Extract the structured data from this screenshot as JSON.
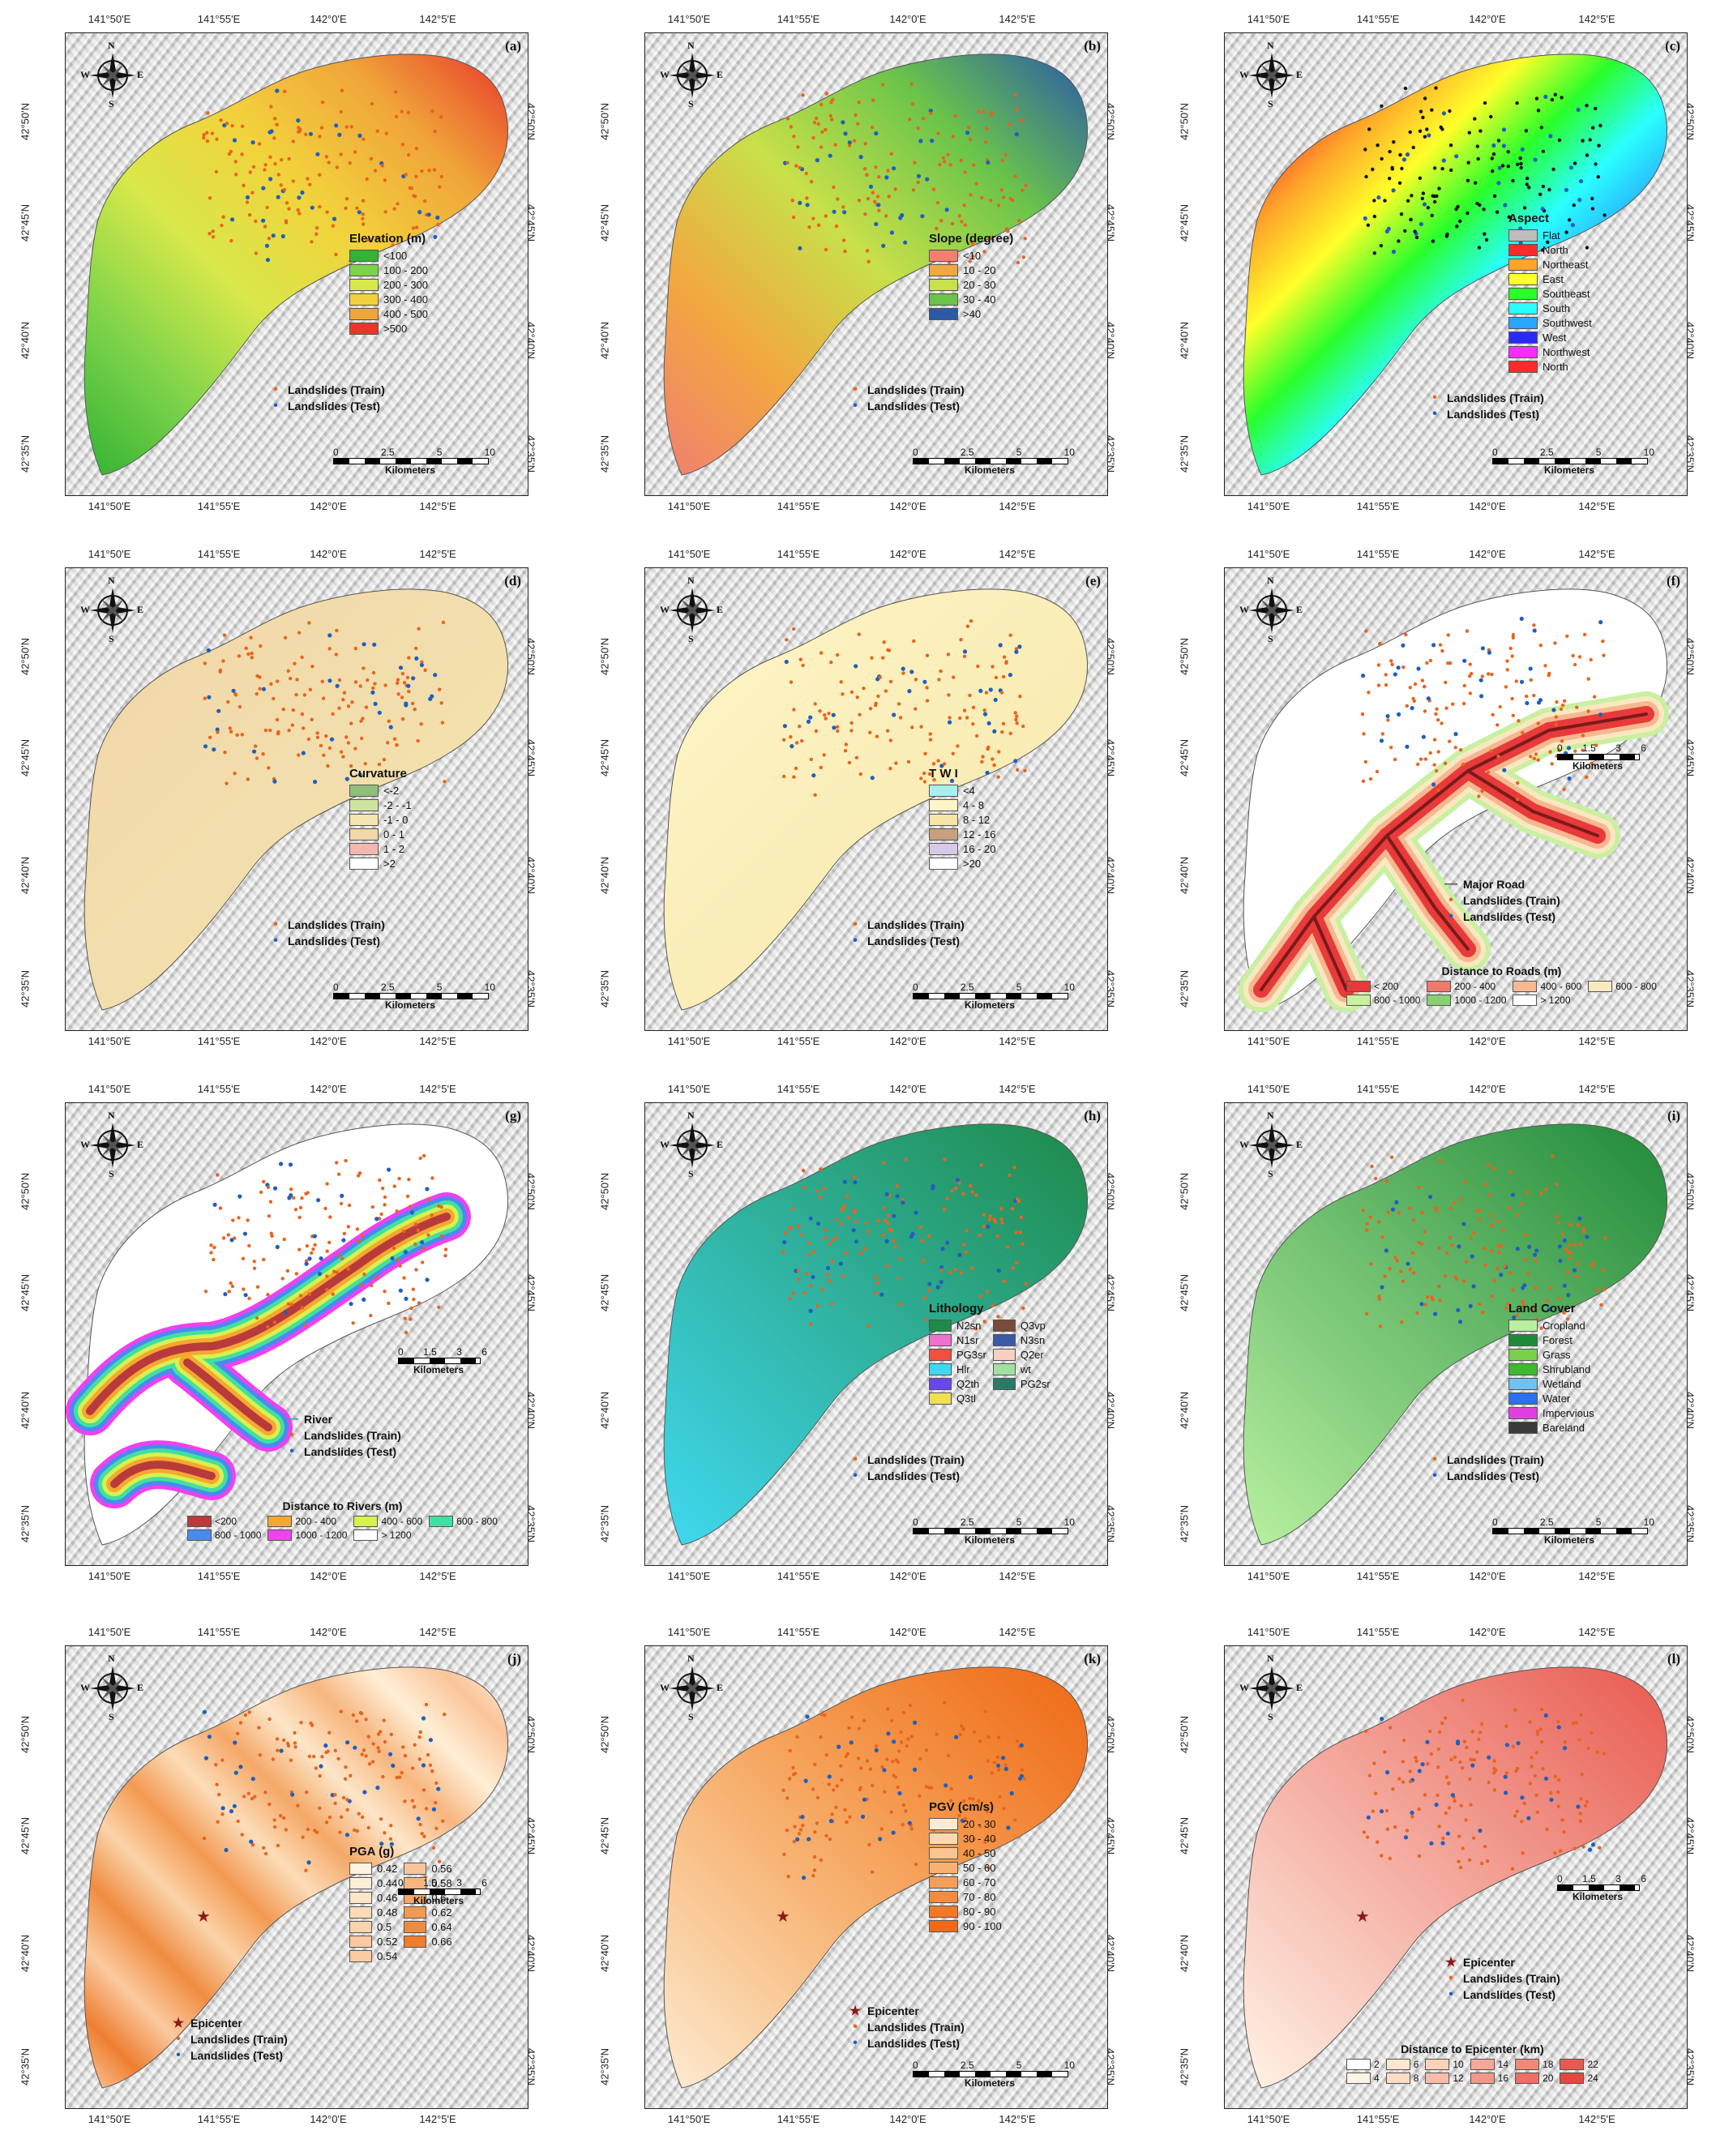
{
  "ticks": {
    "lon": [
      "141°50'E",
      "141°55'E",
      "142°0'E",
      "142°5'E"
    ],
    "lat": [
      "42°50'N",
      "42°45'N",
      "42°40'N",
      "42°35'N"
    ]
  },
  "compass": {
    "n": "N",
    "s": "S",
    "w": "W",
    "e": "E"
  },
  "panels": [
    {
      "tag": "(a)",
      "legend_title": "Elevation (m)",
      "classes": [
        {
          "label": "<100",
          "color": "#33b233"
        },
        {
          "label": "100 - 200",
          "color": "#7cd34a"
        },
        {
          "label": "200 - 300",
          "color": "#d8e84a"
        },
        {
          "label": "300 - 400",
          "color": "#f2d23c"
        },
        {
          "label": "400 - 500",
          "color": "#f0a53a"
        },
        {
          "label": ">500",
          "color": "#e8372a"
        }
      ],
      "points": [
        "Landslides (Train)",
        "Landslides (Test)"
      ],
      "scale": [
        "0",
        "2.5",
        "5",
        "10"
      ],
      "scale_unit": "Kilometers"
    },
    {
      "tag": "(b)",
      "legend_title": "Slope (degree)",
      "classes": [
        {
          "label": "<10",
          "color": "#f08070"
        },
        {
          "label": "10 - 20",
          "color": "#f2a840"
        },
        {
          "label": "20 - 30",
          "color": "#c8e04a"
        },
        {
          "label": "30 - 40",
          "color": "#6ac44a"
        },
        {
          "label": ">40",
          "color": "#2a5aa8"
        }
      ],
      "points": [
        "Landslides (Train)",
        "Landslides (Test)"
      ],
      "scale": [
        "0",
        "2.5",
        "5",
        "10"
      ],
      "scale_unit": "Kilometers"
    },
    {
      "tag": "(c)",
      "legend_title": "Aspect",
      "classes": [
        {
          "label": "Flat",
          "color": "#bdbdbd"
        },
        {
          "label": "North",
          "color": "#ff2a2a"
        },
        {
          "label": "Northeast",
          "color": "#ffa62a"
        },
        {
          "label": "East",
          "color": "#ffff2a"
        },
        {
          "label": "Southeast",
          "color": "#2aff2a"
        },
        {
          "label": "South",
          "color": "#2affff"
        },
        {
          "label": "Southwest",
          "color": "#2aa6ff"
        },
        {
          "label": "West",
          "color": "#2a2aff"
        },
        {
          "label": "Northwest",
          "color": "#ff2aff"
        },
        {
          "label": "North",
          "color": "#ff2a2a"
        }
      ],
      "points": [
        "Landslides (Train)",
        "Landslides (Test)"
      ],
      "scale": [
        "0",
        "2.5",
        "5",
        "10"
      ],
      "scale_unit": "Kilometers"
    },
    {
      "tag": "(d)",
      "legend_title": "Curvature",
      "classes": [
        {
          "label": "<-2",
          "color": "#8fbf7a"
        },
        {
          "label": "-2 - -1",
          "color": "#cfe3a0"
        },
        {
          "label": "-1 - 0",
          "color": "#f3e6b0"
        },
        {
          "label": "0 - 1",
          "color": "#f2d6a8"
        },
        {
          "label": "1 - 2",
          "color": "#f2b8b0"
        },
        {
          "label": ">2",
          "color": "#ffffff"
        }
      ],
      "points": [
        "Landslides (Train)",
        "Landslides (Test)"
      ],
      "scale": [
        "0",
        "2.5",
        "5",
        "10"
      ],
      "scale_unit": "Kilometers"
    },
    {
      "tag": "(e)",
      "legend_title": "T W I",
      "classes": [
        {
          "label": "<4",
          "color": "#a8f0f0"
        },
        {
          "label": "4 - 8",
          "color": "#fff5c8"
        },
        {
          "label": "8 - 12",
          "color": "#f5e6a8"
        },
        {
          "label": "12 - 16",
          "color": "#c8a080"
        },
        {
          "label": "16 - 20",
          "color": "#d8c8e8"
        },
        {
          "label": ">20",
          "color": "#ffffff"
        }
      ],
      "points": [
        "Landslides (Train)",
        "Landslides (Test)"
      ],
      "scale": [
        "0",
        "2.5",
        "5",
        "10"
      ],
      "scale_unit": "Kilometers"
    },
    {
      "tag": "(f)",
      "legend_title": "Distance to Roads (m)",
      "classes": [
        {
          "label": "< 200",
          "color": "#e83a3a"
        },
        {
          "label": "200 - 400",
          "color": "#f07a6a"
        },
        {
          "label": "400 - 600",
          "color": "#f5b890"
        },
        {
          "label": "600 - 800",
          "color": "#fbe8c0"
        },
        {
          "label": "800 - 1000",
          "color": "#c8f0a0"
        },
        {
          "label": "1000 - 1200",
          "color": "#88d070"
        },
        {
          "label": "> 1200",
          "color": "#ffffff"
        }
      ],
      "points": [
        "Major Road",
        "Landslides (Train)",
        "Landslides (Test)"
      ],
      "scale": [
        "0",
        "1.5",
        "3",
        "6"
      ],
      "scale_unit": "Kilometers"
    },
    {
      "tag": "(g)",
      "legend_title": "Distance to Rivers (m)",
      "classes": [
        {
          "label": "<200",
          "color": "#b83a3a"
        },
        {
          "label": "200 - 400",
          "color": "#f5a830"
        },
        {
          "label": "400 - 600",
          "color": "#d8f050"
        },
        {
          "label": "600 - 800",
          "color": "#40e0a0"
        },
        {
          "label": "800 - 1000",
          "color": "#4a8af0"
        },
        {
          "label": "1000 - 1200",
          "color": "#f040f0"
        },
        {
          "label": "> 1200",
          "color": "#ffffff"
        }
      ],
      "points": [
        "River",
        "Landslides (Train)",
        "Landslides (Test)"
      ],
      "scale": [
        "0",
        "1.5",
        "3",
        "6"
      ],
      "scale_unit": "Kilometers"
    },
    {
      "tag": "(h)",
      "legend_title": "Lithology",
      "classes": [
        {
          "label": "N2sn",
          "color": "#1f8a4a"
        },
        {
          "label": "Q3vp",
          "color": "#7a4a3a"
        },
        {
          "label": "N1sr",
          "color": "#f070d0"
        },
        {
          "label": "N3sn",
          "color": "#3a5aa8"
        },
        {
          "label": "PG3sr",
          "color": "#f05040"
        },
        {
          "label": "Q2er",
          "color": "#f5d0c0"
        },
        {
          "label": "Hlr",
          "color": "#40d8f0"
        },
        {
          "label": "wt",
          "color": "#a0e0a0"
        },
        {
          "label": "Q2th",
          "color": "#6a48e8"
        },
        {
          "label": "PG2sr",
          "color": "#2a7a6a"
        },
        {
          "label": "Q3tl",
          "color": "#f0e050"
        }
      ],
      "points": [
        "Landslides (Train)",
        "Landslides (Test)"
      ],
      "scale": [
        "0",
        "2.5",
        "5",
        "10"
      ],
      "scale_unit": "Kilometers"
    },
    {
      "tag": "(i)",
      "legend_title": "Land Cover",
      "classes": [
        {
          "label": "Cropland",
          "color": "#b8f0a0"
        },
        {
          "label": "Forest",
          "color": "#1f8a3a"
        },
        {
          "label": "Grass",
          "color": "#7ad04a"
        },
        {
          "label": "Shrubland",
          "color": "#40b830"
        },
        {
          "label": "Wetland",
          "color": "#70c0f0"
        },
        {
          "label": "Water",
          "color": "#2a70f0"
        },
        {
          "label": "Impervious",
          "color": "#e040e0"
        },
        {
          "label": "Bareland",
          "color": "#3a3a3a"
        }
      ],
      "points": [
        "Landslides (Train)",
        "Landslides (Test)"
      ],
      "scale": [
        "0",
        "2.5",
        "5",
        "10"
      ],
      "scale_unit": "Kilometers"
    },
    {
      "tag": "(j)",
      "legend_title": "PGA (g)",
      "classes": [
        {
          "label": "0.42",
          "color": "#fff3e0"
        },
        {
          "label": "0.56",
          "color": "#f9c49a"
        },
        {
          "label": "0.44",
          "color": "#ffefd6"
        },
        {
          "label": "0.58",
          "color": "#f7b680"
        },
        {
          "label": "0.46",
          "color": "#fde6c8"
        },
        {
          "label": "0.6",
          "color": "#f5a868"
        },
        {
          "label": "0.48",
          "color": "#fcdcb8"
        },
        {
          "label": "0.62",
          "color": "#f39a52"
        },
        {
          "label": "0.5",
          "color": "#fbd3aa"
        },
        {
          "label": "0.64",
          "color": "#f08c40"
        },
        {
          "label": "0.52",
          "color": "#fbcaa0"
        },
        {
          "label": "0.66",
          "color": "#ee7e30"
        },
        {
          "label": "0.54",
          "color": "#facca0"
        }
      ],
      "points": [
        "Epicenter",
        "Landslides (Train)",
        "Landslides (Test)"
      ],
      "scale": [
        "0",
        "1.5",
        "3",
        "6"
      ],
      "scale_unit": "Kilometers"
    },
    {
      "tag": "(k)",
      "legend_title": "PGV (cm/s)",
      "classes": [
        {
          "label": "20 - 30",
          "color": "#fdebd4"
        },
        {
          "label": "30 - 40",
          "color": "#fbd8b0"
        },
        {
          "label": "40 - 50",
          "color": "#f9c590"
        },
        {
          "label": "50 - 60",
          "color": "#f7b272"
        },
        {
          "label": "60 - 70",
          "color": "#f59f56"
        },
        {
          "label": "70 - 80",
          "color": "#f38c3e"
        },
        {
          "label": "80 - 90",
          "color": "#f07a28"
        },
        {
          "label": "90 - 100",
          "color": "#ee6a18"
        }
      ],
      "points": [
        "Epicenter",
        "Landslides (Train)",
        "Landslides (Test)"
      ],
      "scale": [
        "0",
        "2.5",
        "5",
        "10"
      ],
      "scale_unit": "Kilometers"
    },
    {
      "tag": "(l)",
      "legend_title": "Distance to Epicenter (km)",
      "classes": [
        {
          "label": "2",
          "color": "#ffffff"
        },
        {
          "label": "6",
          "color": "#fde6d0"
        },
        {
          "label": "10",
          "color": "#fbd2b8"
        },
        {
          "label": "14",
          "color": "#f5a898"
        },
        {
          "label": "18",
          "color": "#f08878"
        },
        {
          "label": "22",
          "color": "#e85a50"
        },
        {
          "label": "4",
          "color": "#fff3e6"
        },
        {
          "label": "8",
          "color": "#fcdcc4"
        },
        {
          "label": "12",
          "color": "#f8bcaa"
        },
        {
          "label": "16",
          "color": "#f29888"
        },
        {
          "label": "20",
          "color": "#ec7064"
        },
        {
          "label": "24",
          "color": "#e4483e"
        }
      ],
      "points": [
        "Epicenter",
        "Landslides (Train)",
        "Landslides (Test)"
      ],
      "scale": [
        "0",
        "1.5",
        "3",
        "6"
      ],
      "scale_unit": "Kilometers"
    }
  ],
  "colors": {
    "train": "#e8641e",
    "test": "#1f5fbf",
    "epicenter": "#8b1a1a",
    "road": "#5a5a5a",
    "river": "#3a9ac8"
  }
}
